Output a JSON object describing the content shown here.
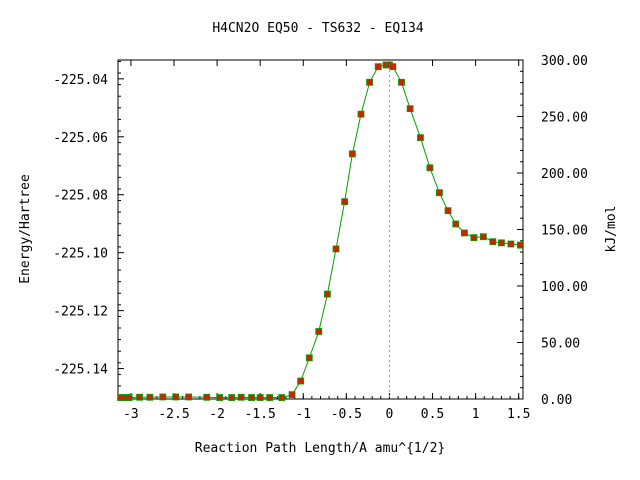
{
  "chart_data": {
    "type": "line",
    "title": "H4CN2O   EQ50 - TS632 - EQ134",
    "xlabel": "Reaction Path Length/A amu^{1/2}",
    "ylabel": "Energy/Hartree",
    "y2label": "kJ/mol",
    "xlim": [
      -3.15,
      1.55
    ],
    "ylim": [
      -225.1505,
      -225.0335
    ],
    "y2lim": [
      0,
      300
    ],
    "x_ticks": [
      {
        "value": -3,
        "label": "-3"
      },
      {
        "value": -2.5,
        "label": "-2.5"
      },
      {
        "value": -2,
        "label": "-2"
      },
      {
        "value": -1.5,
        "label": "-1.5"
      },
      {
        "value": -1,
        "label": "-1"
      },
      {
        "value": -0.5,
        "label": "-0.5"
      },
      {
        "value": 0,
        "label": "0"
      },
      {
        "value": 0.5,
        "label": "0.5"
      },
      {
        "value": 1,
        "label": "1"
      },
      {
        "value": 1.5,
        "label": "1.5"
      }
    ],
    "y_ticks": [
      {
        "value": -225.04,
        "label": "-225.04"
      },
      {
        "value": -225.06,
        "label": "-225.06"
      },
      {
        "value": -225.08,
        "label": "-225.08"
      },
      {
        "value": -225.1,
        "label": "-225.10"
      },
      {
        "value": -225.12,
        "label": "-225.12"
      },
      {
        "value": -225.14,
        "label": "-225.14"
      }
    ],
    "y2_ticks": [
      {
        "value": 300,
        "label": "300.00"
      },
      {
        "value": 250,
        "label": "250.00"
      },
      {
        "value": 200,
        "label": "200.00"
      },
      {
        "value": 150,
        "label": "150.00"
      },
      {
        "value": 100,
        "label": "100.00"
      },
      {
        "value": 50,
        "label": "50.00"
      },
      {
        "value": 0,
        "label": "0.00"
      }
    ],
    "ts_marker_x": 0,
    "line_color": "#00a000",
    "point_color": "#cc2200",
    "point_edge_color": "#00a000",
    "ts_line_color": "#999999",
    "series": [
      {
        "x": [
          -3.12,
          -3.07,
          -3.02,
          -2.9,
          -2.78,
          -2.63,
          -2.48,
          -2.33,
          -2.12,
          -1.97,
          -1.83,
          -1.72,
          -1.6,
          -1.5,
          -1.39,
          -1.25,
          -1.13,
          -1.03,
          -0.93,
          -0.82,
          -0.72,
          -0.62,
          -0.52,
          -0.43,
          -0.33,
          -0.23,
          -0.13,
          -0.04,
          0.0,
          0.04,
          0.14,
          0.24,
          0.36,
          0.47,
          0.58,
          0.68,
          0.77,
          0.87,
          0.98,
          1.09,
          1.2,
          1.3,
          1.41,
          1.52
        ],
        "y": [
          -225.15,
          -225.15,
          -225.15,
          -225.1499,
          -225.1499,
          -225.1498,
          -225.1498,
          -225.1498,
          -225.1499,
          -225.15,
          -225.15,
          -225.1499,
          -225.15,
          -225.15,
          -225.15,
          -225.15,
          -225.149,
          -225.1443,
          -225.1363,
          -225.1272,
          -225.1143,
          -225.0987,
          -225.0824,
          -225.0659,
          -225.0522,
          -225.0412,
          -225.0358,
          -225.0352,
          -225.0352,
          -225.0358,
          -225.0412,
          -225.0503,
          -225.0603,
          -225.0707,
          -225.0793,
          -225.0855,
          -225.0901,
          -225.0932,
          -225.0948,
          -225.0945,
          -225.0962,
          -225.0966,
          -225.097,
          -225.0974
        ]
      }
    ]
  }
}
